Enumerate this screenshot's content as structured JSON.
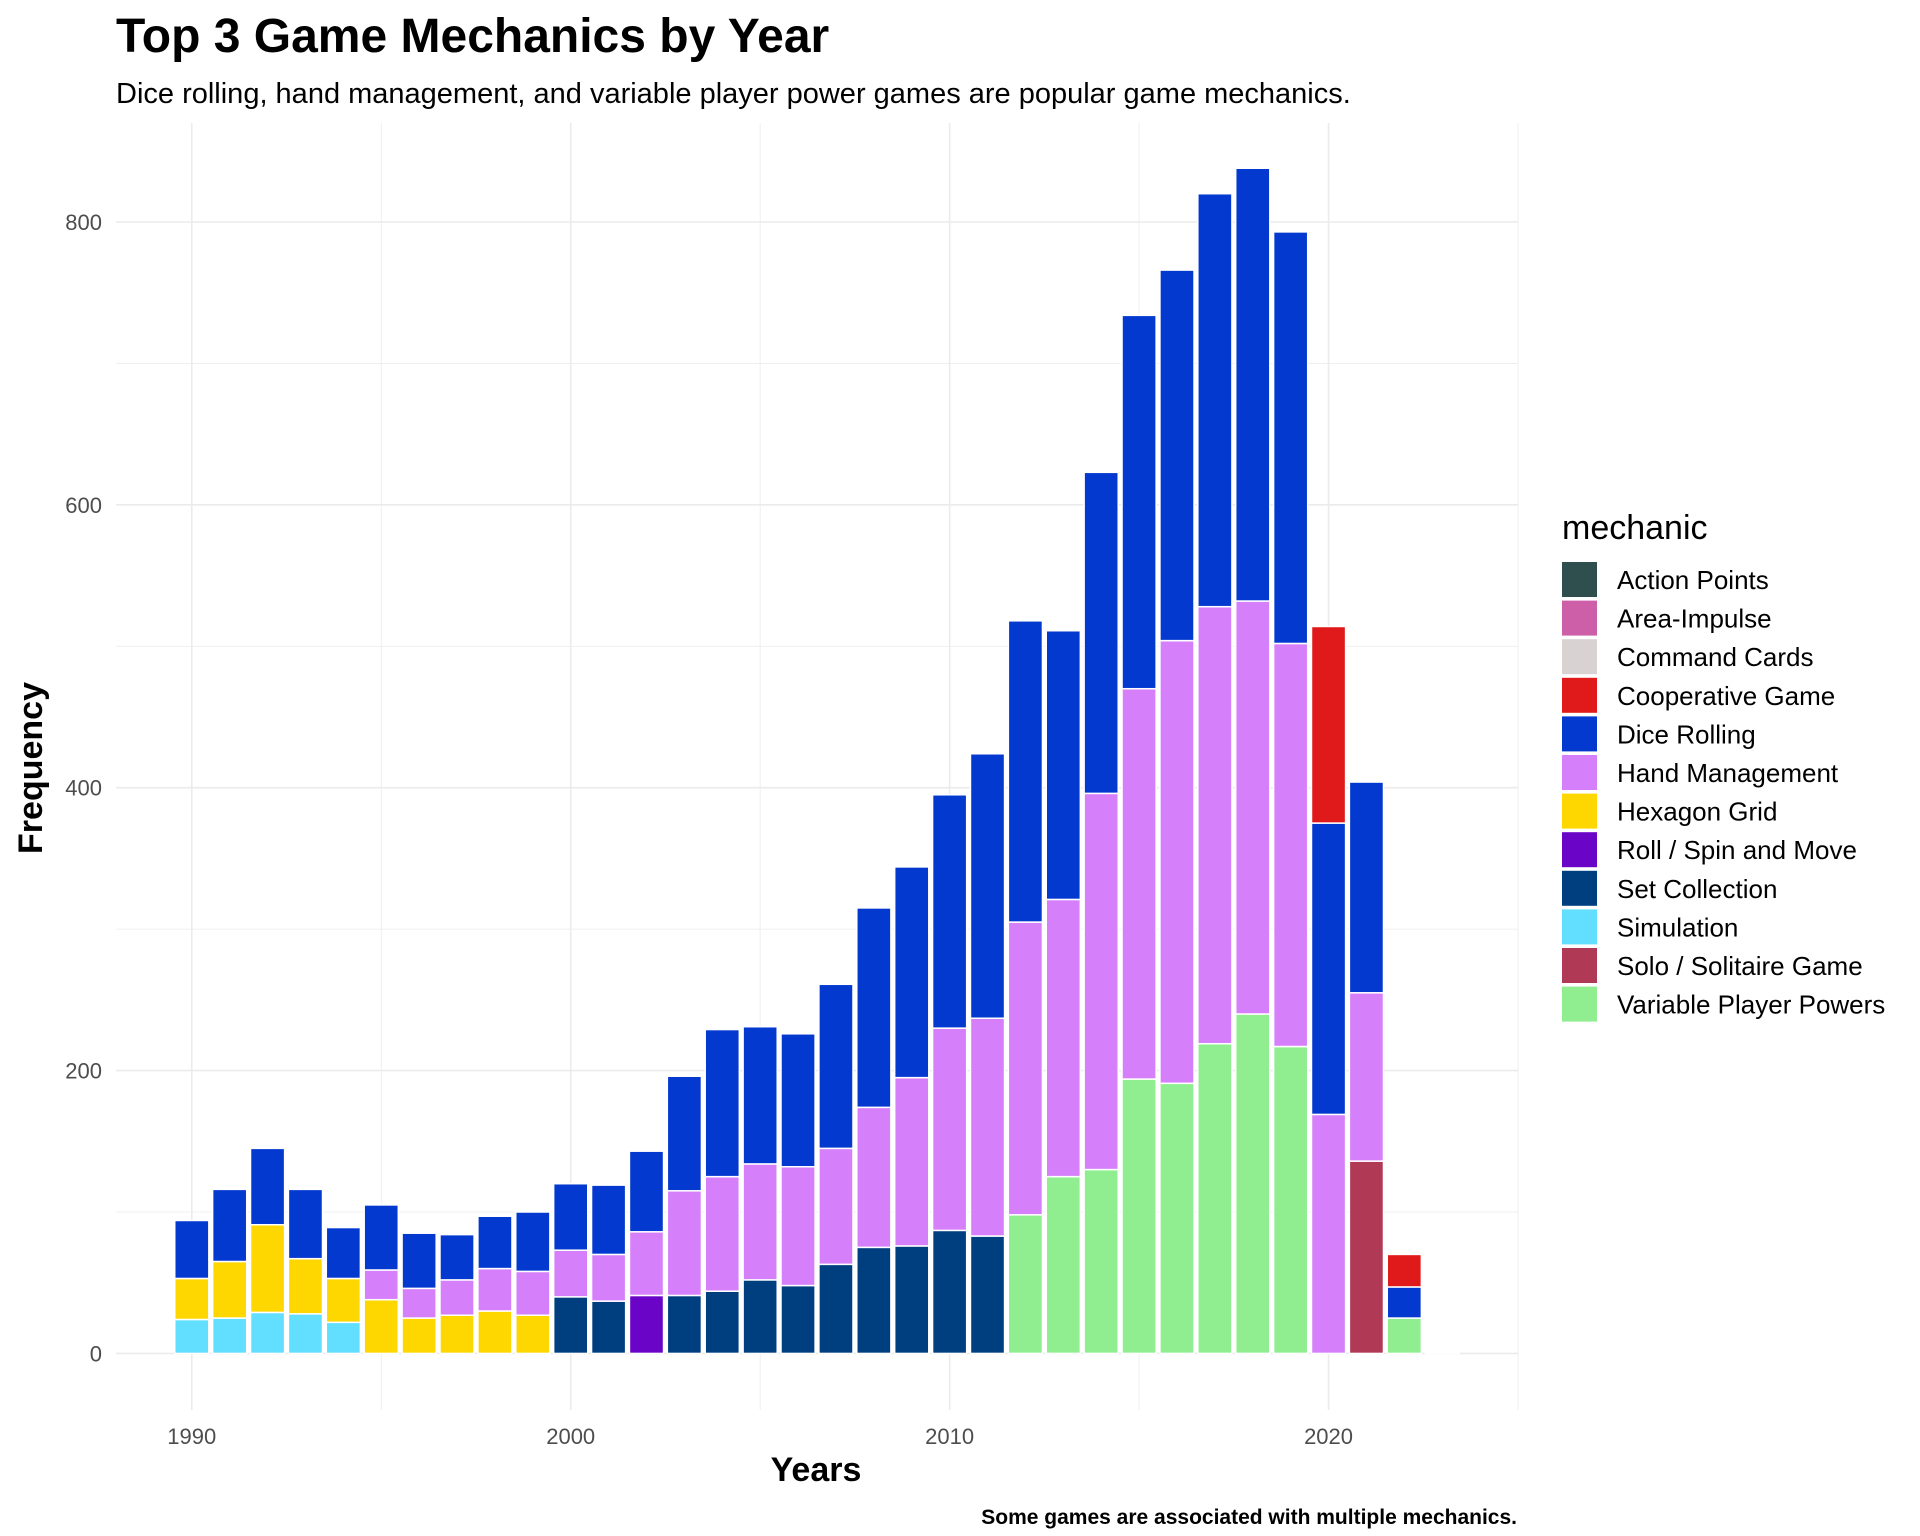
{
  "chart_data": {
    "type": "bar",
    "stacked": true,
    "title": "Top 3 Game Mechanics by Year",
    "subtitle": "Dice rolling, hand management, and variable player power games are popular game mechanics.",
    "xlabel": "Years",
    "ylabel": "Frequency",
    "caption": "Some games are associated with multiple mechanics.",
    "xlim": [
      1988,
      2025
    ],
    "ylim": [
      -40,
      870
    ],
    "x_ticks": [
      1990,
      2000,
      2010,
      2020
    ],
    "y_ticks": [
      0,
      200,
      400,
      600,
      800
    ],
    "grid": true,
    "legend": {
      "title": "mechanic",
      "position": "right",
      "entries": [
        {
          "name": "Action Points",
          "color": "#2F4F4F"
        },
        {
          "name": "Area-Impulse",
          "color": "#CD5FA8"
        },
        {
          "name": "Command Cards",
          "color": "#D9D2D2"
        },
        {
          "name": "Cooperative Game",
          "color": "#E01A1A"
        },
        {
          "name": "Dice Rolling",
          "color": "#0439D0"
        },
        {
          "name": "Hand Management",
          "color": "#D580FA"
        },
        {
          "name": "Hexagon Grid",
          "color": "#FFD700"
        },
        {
          "name": "Roll / Spin and Move",
          "color": "#6A05C7"
        },
        {
          "name": "Set Collection",
          "color": "#003F7F"
        },
        {
          "name": "Simulation",
          "color": "#62DEFF"
        },
        {
          "name": "Solo / Solitaire Game",
          "color": "#B03A56"
        },
        {
          "name": "Variable Player Powers",
          "color": "#90EE90"
        }
      ]
    },
    "bars": [
      {
        "year": 1990,
        "segments": [
          {
            "mechanic": "Simulation",
            "value": 24
          },
          {
            "mechanic": "Hexagon Grid",
            "value": 29
          },
          {
            "mechanic": "Dice Rolling",
            "value": 41
          }
        ]
      },
      {
        "year": 1991,
        "segments": [
          {
            "mechanic": "Simulation",
            "value": 25
          },
          {
            "mechanic": "Hexagon Grid",
            "value": 40
          },
          {
            "mechanic": "Dice Rolling",
            "value": 51
          }
        ]
      },
      {
        "year": 1992,
        "segments": [
          {
            "mechanic": "Simulation",
            "value": 29
          },
          {
            "mechanic": "Hexagon Grid",
            "value": 62
          },
          {
            "mechanic": "Dice Rolling",
            "value": 54
          }
        ]
      },
      {
        "year": 1993,
        "segments": [
          {
            "mechanic": "Simulation",
            "value": 28
          },
          {
            "mechanic": "Hexagon Grid",
            "value": 39
          },
          {
            "mechanic": "Dice Rolling",
            "value": 49
          }
        ]
      },
      {
        "year": 1994,
        "segments": [
          {
            "mechanic": "Simulation",
            "value": 22
          },
          {
            "mechanic": "Hexagon Grid",
            "value": 31
          },
          {
            "mechanic": "Dice Rolling",
            "value": 36
          }
        ]
      },
      {
        "year": 1995,
        "segments": [
          {
            "mechanic": "Hexagon Grid",
            "value": 38
          },
          {
            "mechanic": "Hand Management",
            "value": 21
          },
          {
            "mechanic": "Dice Rolling",
            "value": 46
          }
        ]
      },
      {
        "year": 1996,
        "segments": [
          {
            "mechanic": "Hexagon Grid",
            "value": 25
          },
          {
            "mechanic": "Hand Management",
            "value": 21
          },
          {
            "mechanic": "Dice Rolling",
            "value": 39
          }
        ]
      },
      {
        "year": 1997,
        "segments": [
          {
            "mechanic": "Hexagon Grid",
            "value": 27
          },
          {
            "mechanic": "Hand Management",
            "value": 25
          },
          {
            "mechanic": "Dice Rolling",
            "value": 32
          }
        ]
      },
      {
        "year": 1998,
        "segments": [
          {
            "mechanic": "Hexagon Grid",
            "value": 30
          },
          {
            "mechanic": "Hand Management",
            "value": 30
          },
          {
            "mechanic": "Dice Rolling",
            "value": 37
          }
        ]
      },
      {
        "year": 1999,
        "segments": [
          {
            "mechanic": "Hexagon Grid",
            "value": 27
          },
          {
            "mechanic": "Hand Management",
            "value": 31
          },
          {
            "mechanic": "Dice Rolling",
            "value": 42
          }
        ]
      },
      {
        "year": 2000,
        "segments": [
          {
            "mechanic": "Set Collection",
            "value": 40
          },
          {
            "mechanic": "Hand Management",
            "value": 33
          },
          {
            "mechanic": "Dice Rolling",
            "value": 47
          }
        ]
      },
      {
        "year": 2001,
        "segments": [
          {
            "mechanic": "Set Collection",
            "value": 37
          },
          {
            "mechanic": "Hand Management",
            "value": 33
          },
          {
            "mechanic": "Dice Rolling",
            "value": 49
          }
        ]
      },
      {
        "year": 2002,
        "segments": [
          {
            "mechanic": "Roll / Spin and Move",
            "value": 41
          },
          {
            "mechanic": "Hand Management",
            "value": 45
          },
          {
            "mechanic": "Dice Rolling",
            "value": 57
          }
        ]
      },
      {
        "year": 2003,
        "segments": [
          {
            "mechanic": "Set Collection",
            "value": 41
          },
          {
            "mechanic": "Hand Management",
            "value": 74
          },
          {
            "mechanic": "Dice Rolling",
            "value": 81
          }
        ]
      },
      {
        "year": 2004,
        "segments": [
          {
            "mechanic": "Set Collection",
            "value": 44
          },
          {
            "mechanic": "Hand Management",
            "value": 81
          },
          {
            "mechanic": "Dice Rolling",
            "value": 104
          }
        ]
      },
      {
        "year": 2005,
        "segments": [
          {
            "mechanic": "Set Collection",
            "value": 52
          },
          {
            "mechanic": "Hand Management",
            "value": 82
          },
          {
            "mechanic": "Dice Rolling",
            "value": 97
          }
        ]
      },
      {
        "year": 2006,
        "segments": [
          {
            "mechanic": "Set Collection",
            "value": 48
          },
          {
            "mechanic": "Hand Management",
            "value": 84
          },
          {
            "mechanic": "Dice Rolling",
            "value": 94
          }
        ]
      },
      {
        "year": 2007,
        "segments": [
          {
            "mechanic": "Set Collection",
            "value": 63
          },
          {
            "mechanic": "Hand Management",
            "value": 82
          },
          {
            "mechanic": "Dice Rolling",
            "value": 116
          }
        ]
      },
      {
        "year": 2008,
        "segments": [
          {
            "mechanic": "Set Collection",
            "value": 75
          },
          {
            "mechanic": "Hand Management",
            "value": 99
          },
          {
            "mechanic": "Dice Rolling",
            "value": 141
          }
        ]
      },
      {
        "year": 2009,
        "segments": [
          {
            "mechanic": "Set Collection",
            "value": 76
          },
          {
            "mechanic": "Hand Management",
            "value": 119
          },
          {
            "mechanic": "Dice Rolling",
            "value": 149
          }
        ]
      },
      {
        "year": 2010,
        "segments": [
          {
            "mechanic": "Set Collection",
            "value": 87
          },
          {
            "mechanic": "Hand Management",
            "value": 143
          },
          {
            "mechanic": "Dice Rolling",
            "value": 165
          }
        ]
      },
      {
        "year": 2011,
        "segments": [
          {
            "mechanic": "Set Collection",
            "value": 83
          },
          {
            "mechanic": "Hand Management",
            "value": 154
          },
          {
            "mechanic": "Dice Rolling",
            "value": 187
          }
        ]
      },
      {
        "year": 2012,
        "segments": [
          {
            "mechanic": "Variable Player Powers",
            "value": 98
          },
          {
            "mechanic": "Hand Management",
            "value": 207
          },
          {
            "mechanic": "Dice Rolling",
            "value": 213
          }
        ]
      },
      {
        "year": 2013,
        "segments": [
          {
            "mechanic": "Variable Player Powers",
            "value": 125
          },
          {
            "mechanic": "Hand Management",
            "value": 196
          },
          {
            "mechanic": "Dice Rolling",
            "value": 190
          }
        ]
      },
      {
        "year": 2014,
        "segments": [
          {
            "mechanic": "Variable Player Powers",
            "value": 130
          },
          {
            "mechanic": "Hand Management",
            "value": 266
          },
          {
            "mechanic": "Dice Rolling",
            "value": 227
          }
        ]
      },
      {
        "year": 2015,
        "segments": [
          {
            "mechanic": "Variable Player Powers",
            "value": 194
          },
          {
            "mechanic": "Hand Management",
            "value": 276
          },
          {
            "mechanic": "Dice Rolling",
            "value": 264
          }
        ]
      },
      {
        "year": 2016,
        "segments": [
          {
            "mechanic": "Variable Player Powers",
            "value": 191
          },
          {
            "mechanic": "Hand Management",
            "value": 313
          },
          {
            "mechanic": "Dice Rolling",
            "value": 262
          }
        ]
      },
      {
        "year": 2017,
        "segments": [
          {
            "mechanic": "Variable Player Powers",
            "value": 219
          },
          {
            "mechanic": "Hand Management",
            "value": 309
          },
          {
            "mechanic": "Dice Rolling",
            "value": 292
          }
        ]
      },
      {
        "year": 2018,
        "segments": [
          {
            "mechanic": "Variable Player Powers",
            "value": 240
          },
          {
            "mechanic": "Hand Management",
            "value": 292
          },
          {
            "mechanic": "Dice Rolling",
            "value": 306
          }
        ]
      },
      {
        "year": 2019,
        "segments": [
          {
            "mechanic": "Variable Player Powers",
            "value": 217
          },
          {
            "mechanic": "Hand Management",
            "value": 285
          },
          {
            "mechanic": "Dice Rolling",
            "value": 291
          }
        ]
      },
      {
        "year": 2020,
        "segments": [
          {
            "mechanic": "Hand Management",
            "value": 169
          },
          {
            "mechanic": "Dice Rolling",
            "value": 206
          },
          {
            "mechanic": "Cooperative Game",
            "value": 139
          }
        ]
      },
      {
        "year": 2021,
        "segments": [
          {
            "mechanic": "Solo / Solitaire Game",
            "value": 136
          },
          {
            "mechanic": "Hand Management",
            "value": 119
          },
          {
            "mechanic": "Dice Rolling",
            "value": 149
          }
        ]
      },
      {
        "year": 2022,
        "segments": [
          {
            "mechanic": "Variable Player Powers",
            "value": 25
          },
          {
            "mechanic": "Dice Rolling",
            "value": 22
          },
          {
            "mechanic": "Cooperative Game",
            "value": 23
          }
        ]
      },
      {
        "year": 2023,
        "segments": [
          {
            "mechanic": "Action Points",
            "value": 1
          },
          {
            "mechanic": "Area-Impulse",
            "value": 1
          },
          {
            "mechanic": "Command Cards",
            "value": 1
          }
        ]
      }
    ]
  }
}
